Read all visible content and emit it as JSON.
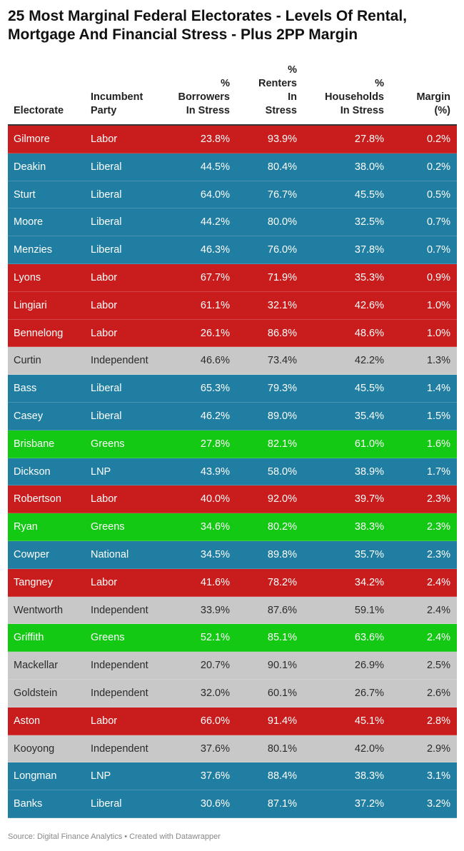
{
  "title": "25 Most Marginal Federal Electorates - Levels Of Rental, Mortgage And Financial Stress - Plus 2PP Margin",
  "footer": "Source: Digital Finance Analytics • Created with Datawrapper",
  "colors": {
    "Labor": "#c91c1c",
    "Liberal": "#1f7ea1",
    "LNP": "#1f7ea1",
    "National": "#1f7ea1",
    "Greens": "#13c913",
    "Independent": "#c8c8c8"
  },
  "chart_data": {
    "type": "table",
    "title": "25 Most Marginal Federal Electorates - Levels Of Rental, Mortgage And Financial Stress - Plus 2PP Margin",
    "columns": [
      "Electorate",
      "Incumbent\nParty",
      "%\nBorrowers\nIn Stress",
      "%\nRenters\nIn\nStress",
      "%\nHouseholds\nIn Stress",
      "Margin\n(%)"
    ],
    "rows": [
      [
        "Gilmore",
        "Labor",
        "23.8%",
        "93.9%",
        "27.8%",
        "0.2%"
      ],
      [
        "Deakin",
        "Liberal",
        "44.5%",
        "80.4%",
        "38.0%",
        "0.2%"
      ],
      [
        "Sturt",
        "Liberal",
        "64.0%",
        "76.7%",
        "45.5%",
        "0.5%"
      ],
      [
        "Moore",
        "Liberal",
        "44.2%",
        "80.0%",
        "32.5%",
        "0.7%"
      ],
      [
        "Menzies",
        "Liberal",
        "46.3%",
        "76.0%",
        "37.8%",
        "0.7%"
      ],
      [
        "Lyons",
        "Labor",
        "67.7%",
        "71.9%",
        "35.3%",
        "0.9%"
      ],
      [
        "Lingiari",
        "Labor",
        "61.1%",
        "32.1%",
        "42.6%",
        "1.0%"
      ],
      [
        "Bennelong",
        "Labor",
        "26.1%",
        "86.8%",
        "48.6%",
        "1.0%"
      ],
      [
        "Curtin",
        "Independent",
        "46.6%",
        "73.4%",
        "42.2%",
        "1.3%"
      ],
      [
        "Bass",
        "Liberal",
        "65.3%",
        "79.3%",
        "45.5%",
        "1.4%"
      ],
      [
        "Casey",
        "Liberal",
        "46.2%",
        "89.0%",
        "35.4%",
        "1.5%"
      ],
      [
        "Brisbane",
        "Greens",
        "27.8%",
        "82.1%",
        "61.0%",
        "1.6%"
      ],
      [
        "Dickson",
        "LNP",
        "43.9%",
        "58.0%",
        "38.9%",
        "1.7%"
      ],
      [
        "Robertson",
        "Labor",
        "40.0%",
        "92.0%",
        "39.7%",
        "2.3%"
      ],
      [
        "Ryan",
        "Greens",
        "34.6%",
        "80.2%",
        "38.3%",
        "2.3%"
      ],
      [
        "Cowper",
        "National",
        "34.5%",
        "89.8%",
        "35.7%",
        "2.3%"
      ],
      [
        "Tangney",
        "Labor",
        "41.6%",
        "78.2%",
        "34.2%",
        "2.4%"
      ],
      [
        "Wentworth",
        "Independent",
        "33.9%",
        "87.6%",
        "59.1%",
        "2.4%"
      ],
      [
        "Griffith",
        "Greens",
        "52.1%",
        "85.1%",
        "63.6%",
        "2.4%"
      ],
      [
        "Mackellar",
        "Independent",
        "20.7%",
        "90.1%",
        "26.9%",
        "2.5%"
      ],
      [
        "Goldstein",
        "Independent",
        "32.0%",
        "60.1%",
        "26.7%",
        "2.6%"
      ],
      [
        "Aston",
        "Labor",
        "66.0%",
        "91.4%",
        "45.1%",
        "2.8%"
      ],
      [
        "Kooyong",
        "Independent",
        "37.6%",
        "80.1%",
        "42.0%",
        "2.9%"
      ],
      [
        "Longman",
        "LNP",
        "37.6%",
        "88.4%",
        "38.3%",
        "3.1%"
      ],
      [
        "Banks",
        "Liberal",
        "30.6%",
        "87.1%",
        "37.2%",
        "3.2%"
      ]
    ]
  }
}
